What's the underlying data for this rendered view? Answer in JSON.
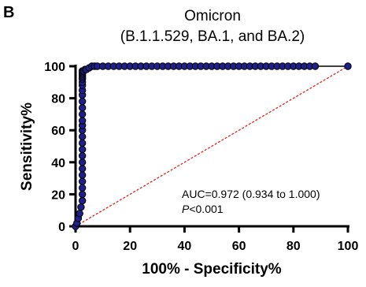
{
  "panel_label": "B",
  "chart_data": {
    "type": "line",
    "title": "Omicron",
    "subtitle": "(B.1.1.529, BA.1, and BA.2)",
    "xlabel": "100% - Specificity%",
    "ylabel": "Sensitivity%",
    "xlim": [
      0,
      100
    ],
    "ylim": [
      0,
      100
    ],
    "xticks": [
      "0",
      "20",
      "40",
      "60",
      "80",
      "100"
    ],
    "yticks": [
      "0",
      "20",
      "40",
      "60",
      "80",
      "100"
    ],
    "grid": false,
    "annotation": {
      "auc": "AUC=0.972 (0.934 to 1.000)",
      "p_italic": "P",
      "p_rest": "<0.001"
    },
    "colors": {
      "points": "#1f1f8a",
      "curve": "#000000",
      "reference": "#e0241b"
    },
    "series": [
      {
        "values_note": "",
        "x": [
          0,
          0.5,
          1,
          1.5,
          2,
          2.5,
          2.5,
          2.5,
          2.5,
          2.5,
          2.5,
          2.5,
          2.5,
          2.5,
          2.5,
          2.5,
          2.5,
          2.5,
          2.5,
          2.5,
          2.5,
          2.5,
          2.5,
          2.5,
          2.5,
          2.5,
          2.5,
          2.5,
          2.5,
          2.5,
          2.5,
          2.5,
          2.5,
          2.5,
          2.5,
          2.5,
          3,
          3.5,
          4,
          5,
          6,
          7,
          8,
          10,
          12,
          14,
          16,
          18,
          20,
          22,
          24,
          26,
          28,
          30,
          32,
          34,
          36,
          38,
          40,
          42,
          44,
          46,
          48,
          50,
          52,
          54,
          56,
          58,
          60,
          62,
          64,
          66,
          68,
          70,
          72,
          74,
          76,
          78,
          80,
          82,
          84,
          86,
          88,
          100
        ],
        "y": [
          0,
          2,
          5,
          8,
          12,
          16,
          20,
          24,
          28,
          32,
          36,
          40,
          44,
          48,
          52,
          56,
          60,
          63,
          66,
          70,
          74,
          78,
          82,
          85,
          88,
          90,
          92,
          93,
          94,
          95,
          96,
          96,
          96,
          96,
          97,
          97,
          97,
          98,
          98,
          99,
          100,
          100,
          100,
          100,
          100,
          100,
          100,
          100,
          100,
          100,
          100,
          100,
          100,
          100,
          100,
          100,
          100,
          100,
          100,
          100,
          100,
          100,
          100,
          100,
          100,
          100,
          100,
          100,
          100,
          100,
          100,
          100,
          100,
          100,
          100,
          100,
          100,
          100,
          100,
          100,
          100,
          100,
          100,
          100
        ]
      }
    ]
  }
}
